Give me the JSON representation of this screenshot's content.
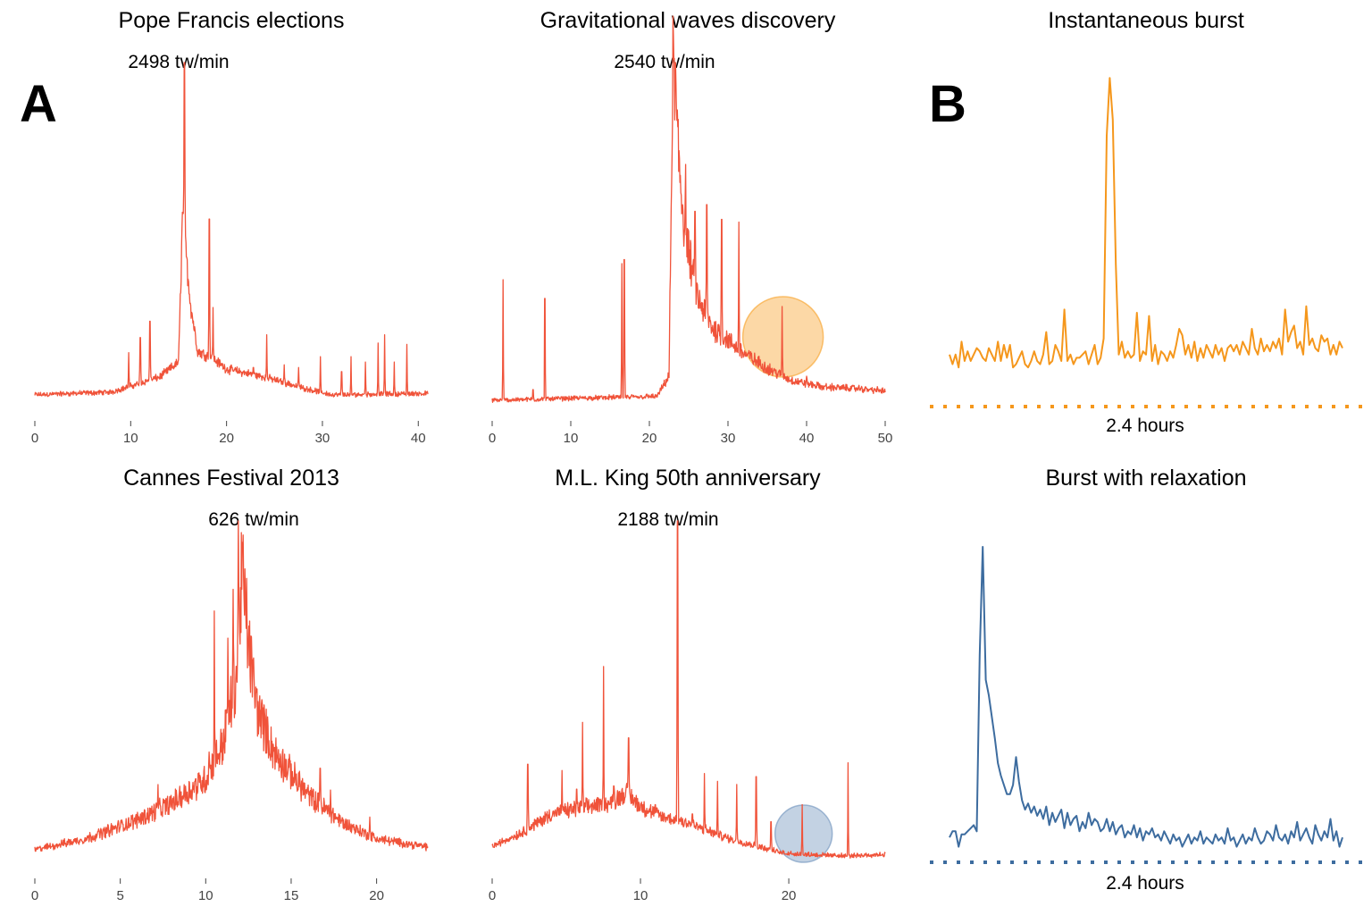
{
  "panel_letters": [
    "A",
    "B"
  ],
  "chart_data": [
    {
      "type": "line",
      "title": "Pope Francis elections",
      "peak_label": "2498 tw/min",
      "color": "#f0533a",
      "xlim": [
        0,
        41
      ],
      "ylim": [
        0,
        2498
      ],
      "xticks": [
        0,
        10,
        20,
        30,
        40
      ],
      "baseline": 60,
      "envelope": [
        [
          0,
          60
        ],
        [
          8,
          80
        ],
        [
          13,
          190
        ],
        [
          15,
          300
        ],
        [
          15.4,
          1350
        ],
        [
          16.3,
          700
        ],
        [
          17,
          380
        ],
        [
          18.5,
          330
        ],
        [
          20,
          250
        ],
        [
          24,
          190
        ],
        [
          28,
          110
        ],
        [
          31,
          60
        ],
        [
          41,
          70
        ]
      ],
      "spikes": [
        [
          15.6,
          2498
        ],
        [
          15.4,
          1400
        ],
        [
          18.2,
          1350
        ],
        [
          18.6,
          700
        ],
        [
          12,
          600
        ],
        [
          11,
          480
        ],
        [
          9.8,
          370
        ],
        [
          24.2,
          500
        ],
        [
          29.8,
          340
        ],
        [
          33,
          340
        ],
        [
          36.5,
          500
        ],
        [
          35.8,
          440
        ],
        [
          38.8,
          430
        ],
        [
          34.5,
          300
        ],
        [
          37.5,
          300
        ],
        [
          32,
          230
        ],
        [
          26,
          280
        ],
        [
          27.5,
          260
        ],
        [
          22.8,
          260
        ]
      ],
      "noise": 0.1
    },
    {
      "type": "line",
      "title": "Gravitational waves discovery",
      "peak_label": "2540 tw/min",
      "color": "#f0533a",
      "xlim": [
        0,
        50
      ],
      "ylim": [
        0,
        2540
      ],
      "xticks": [
        0,
        10,
        20,
        30,
        40,
        50
      ],
      "baseline": 20,
      "envelope": [
        [
          0,
          20
        ],
        [
          21,
          50
        ],
        [
          22.5,
          200
        ],
        [
          23,
          2540
        ],
        [
          23.6,
          1900
        ],
        [
          24.5,
          1300
        ],
        [
          26,
          800
        ],
        [
          28,
          560
        ],
        [
          30,
          470
        ],
        [
          32,
          370
        ],
        [
          35,
          260
        ],
        [
          38,
          170
        ],
        [
          42,
          120
        ],
        [
          46,
          110
        ],
        [
          50,
          90
        ]
      ],
      "spikes": [
        [
          23.3,
          2540
        ],
        [
          23,
          2540
        ],
        [
          1.4,
          920
        ],
        [
          6.7,
          780
        ],
        [
          16.8,
          1070
        ],
        [
          16.5,
          1040
        ],
        [
          25.8,
          1430
        ],
        [
          27.3,
          1480
        ],
        [
          29.2,
          1370
        ],
        [
          31.4,
          1350
        ],
        [
          24.6,
          1780
        ],
        [
          36.9,
          720
        ],
        [
          5.2,
          100
        ],
        [
          40,
          200
        ]
      ],
      "noise": 0.15,
      "highlight": {
        "x": 37,
        "color": "#f8a93a"
      }
    },
    {
      "type": "line",
      "title": "Cannes Festival 2013",
      "peak_label": "626 tw/min",
      "color": "#f0533a",
      "xlim": [
        0,
        23
      ],
      "ylim": [
        0,
        626
      ],
      "xticks": [
        0,
        5,
        10,
        15,
        20
      ],
      "baseline": 15,
      "envelope": [
        [
          0,
          20
        ],
        [
          3,
          40
        ],
        [
          6,
          75
        ],
        [
          8,
          105
        ],
        [
          10,
          150
        ],
        [
          11,
          215
        ],
        [
          11.8,
          340
        ],
        [
          12.1,
          520
        ],
        [
          12.5,
          400
        ],
        [
          13,
          280
        ],
        [
          14,
          200
        ],
        [
          16,
          120
        ],
        [
          18,
          70
        ],
        [
          20,
          40
        ],
        [
          23,
          25
        ]
      ],
      "spikes": [
        [
          11.9,
          626
        ],
        [
          12.2,
          600
        ],
        [
          12.4,
          520
        ],
        [
          10.5,
          460
        ],
        [
          11.3,
          410
        ],
        [
          10.2,
          200
        ],
        [
          7.2,
          140
        ],
        [
          14.5,
          200
        ],
        [
          16.7,
          170
        ],
        [
          17.3,
          130
        ],
        [
          19.6,
          80
        ],
        [
          11.6,
          500
        ]
      ],
      "noise": 0.18
    },
    {
      "type": "line",
      "title": "M.L. King 50th anniversary",
      "peak_label": "2188 tw/min",
      "color": "#f0533a",
      "xlim": [
        0,
        26.5
      ],
      "ylim": [
        0,
        2188
      ],
      "xticks": [
        0,
        10,
        20
      ],
      "baseline": 40,
      "envelope": [
        [
          0,
          90
        ],
        [
          2,
          180
        ],
        [
          4,
          300
        ],
        [
          6,
          340
        ],
        [
          8,
          370
        ],
        [
          9,
          440
        ],
        [
          10,
          350
        ],
        [
          11.5,
          280
        ],
        [
          13,
          250
        ],
        [
          14,
          210
        ],
        [
          16,
          140
        ],
        [
          18,
          90
        ],
        [
          19.5,
          50
        ],
        [
          21,
          40
        ],
        [
          24,
          30
        ],
        [
          26.5,
          40
        ]
      ],
      "spikes": [
        [
          12.5,
          2188
        ],
        [
          7.5,
          1250
        ],
        [
          6.1,
          890
        ],
        [
          9.2,
          790
        ],
        [
          2.4,
          620
        ],
        [
          4.7,
          580
        ],
        [
          14.3,
          560
        ],
        [
          15.2,
          510
        ],
        [
          16.5,
          490
        ],
        [
          17.8,
          540
        ],
        [
          24,
          630
        ],
        [
          20.9,
          360
        ],
        [
          8.2,
          480
        ],
        [
          5.7,
          460
        ],
        [
          11,
          360
        ],
        [
          13.5,
          300
        ],
        [
          18.8,
          250
        ]
      ],
      "noise": 0.14,
      "highlight": {
        "x": 21,
        "color": "#7a9bc2"
      }
    },
    {
      "type": "line",
      "title": "Instantaneous burst",
      "color": "#f5971c",
      "scale_label": "2.4 hours",
      "ylim": [
        0,
        1
      ],
      "y": [
        0.12,
        0.09,
        0.12,
        0.08,
        0.16,
        0.1,
        0.13,
        0.1,
        0.12,
        0.14,
        0.13,
        0.11,
        0.1,
        0.14,
        0.12,
        0.1,
        0.16,
        0.1,
        0.15,
        0.11,
        0.15,
        0.08,
        0.09,
        0.11,
        0.13,
        0.09,
        0.08,
        0.1,
        0.13,
        0.1,
        0.09,
        0.12,
        0.19,
        0.09,
        0.1,
        0.15,
        0.13,
        0.1,
        0.26,
        0.1,
        0.12,
        0.09,
        0.11,
        0.11,
        0.12,
        0.13,
        0.09,
        0.12,
        0.15,
        0.09,
        0.11,
        0.17,
        0.8,
        0.98,
        0.85,
        0.4,
        0.12,
        0.16,
        0.11,
        0.13,
        0.11,
        0.12,
        0.25,
        0.1,
        0.13,
        0.12,
        0.24,
        0.1,
        0.15,
        0.09,
        0.13,
        0.12,
        0.1,
        0.13,
        0.11,
        0.15,
        0.2,
        0.18,
        0.12,
        0.15,
        0.11,
        0.16,
        0.1,
        0.14,
        0.11,
        0.15,
        0.13,
        0.11,
        0.15,
        0.12,
        0.14,
        0.1,
        0.14,
        0.15,
        0.13,
        0.15,
        0.12,
        0.16,
        0.14,
        0.12,
        0.2,
        0.14,
        0.12,
        0.17,
        0.13,
        0.15,
        0.13,
        0.16,
        0.14,
        0.17,
        0.12,
        0.26,
        0.16,
        0.19,
        0.21,
        0.14,
        0.16,
        0.12,
        0.27,
        0.15,
        0.17,
        0.14,
        0.13,
        0.18,
        0.16,
        0.17,
        0.12,
        0.15,
        0.12,
        0.16,
        0.14
      ]
    },
    {
      "type": "line",
      "title": "Burst with relaxation",
      "color": "#3d6c9f",
      "scale_label": "2.4 hours",
      "ylim": [
        0,
        1
      ],
      "y": [
        0.06,
        0.08,
        0.08,
        0.03,
        0.07,
        0.07,
        0.08,
        0.09,
        0.1,
        0.08,
        0.65,
        1.0,
        0.57,
        0.52,
        0.45,
        0.38,
        0.3,
        0.26,
        0.23,
        0.2,
        0.2,
        0.23,
        0.32,
        0.24,
        0.18,
        0.15,
        0.17,
        0.14,
        0.16,
        0.13,
        0.15,
        0.12,
        0.16,
        0.1,
        0.14,
        0.11,
        0.13,
        0.15,
        0.09,
        0.14,
        0.1,
        0.12,
        0.13,
        0.08,
        0.11,
        0.09,
        0.14,
        0.1,
        0.12,
        0.11,
        0.08,
        0.09,
        0.12,
        0.08,
        0.11,
        0.07,
        0.09,
        0.1,
        0.06,
        0.08,
        0.07,
        0.1,
        0.06,
        0.09,
        0.05,
        0.08,
        0.07,
        0.09,
        0.06,
        0.07,
        0.05,
        0.08,
        0.06,
        0.04,
        0.07,
        0.05,
        0.06,
        0.03,
        0.05,
        0.07,
        0.04,
        0.06,
        0.05,
        0.08,
        0.04,
        0.06,
        0.05,
        0.04,
        0.07,
        0.05,
        0.06,
        0.04,
        0.09,
        0.05,
        0.06,
        0.03,
        0.05,
        0.07,
        0.04,
        0.06,
        0.05,
        0.09,
        0.06,
        0.04,
        0.05,
        0.08,
        0.07,
        0.05,
        0.1,
        0.06,
        0.05,
        0.07,
        0.04,
        0.08,
        0.06,
        0.11,
        0.05,
        0.07,
        0.09,
        0.06,
        0.04,
        0.1,
        0.07,
        0.05,
        0.08,
        0.06,
        0.12,
        0.05,
        0.08,
        0.03,
        0.06
      ]
    }
  ]
}
